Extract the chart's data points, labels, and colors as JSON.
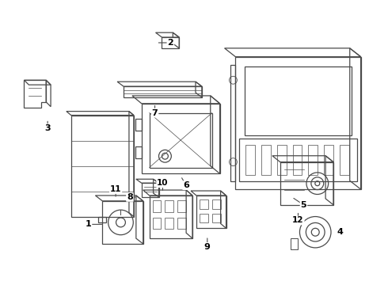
{
  "background_color": "#ffffff",
  "line_color": "#4a4a4a",
  "label_color": "#000000",
  "figsize": [
    4.9,
    3.6
  ],
  "dpi": 100
}
